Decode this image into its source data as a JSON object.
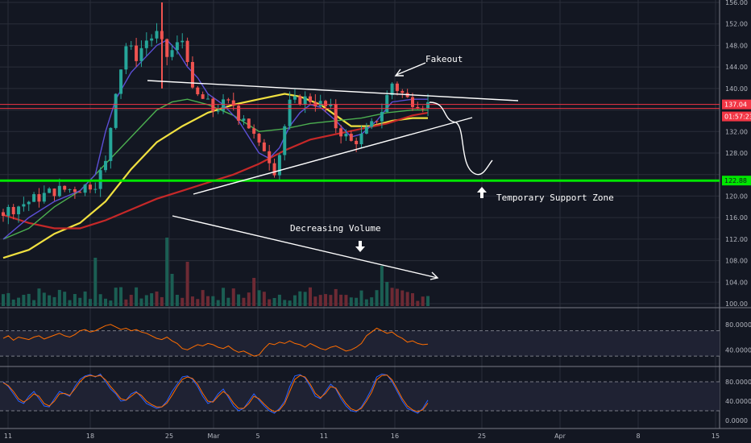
{
  "chart_data": [
    {
      "type": "candlestick",
      "title": "",
      "x_tick_labels": [
        "11",
        "18",
        "25",
        "Mar",
        "5",
        "11",
        "16",
        "25",
        "Apr",
        "8",
        "15"
      ],
      "y_axis": {
        "min": 100,
        "max": 156,
        "ticks": [
          100,
          104,
          108,
          112,
          116,
          120,
          124,
          128,
          132,
          136,
          140,
          144,
          148,
          152,
          156
        ],
        "tick_labels": [
          "100.00",
          "104.00",
          "108.00",
          "112.00",
          "116.00",
          "120.00",
          "124.00",
          "128.00",
          "132.00",
          "136.00",
          "140.00",
          "144.00",
          "148.00",
          "152.00",
          "156.00"
        ]
      },
      "price_labels": [
        {
          "text": "137.04",
          "value": 137.04,
          "color": "#f23645"
        },
        {
          "text": "01:57:23",
          "value": 134.8,
          "color": "#f23645"
        },
        {
          "text": "122.88",
          "value": 122.88,
          "color": "#00e600"
        }
      ],
      "close_path": [
        [
          0,
          117
        ],
        [
          5,
          119
        ],
        [
          10,
          121
        ],
        [
          15,
          121.5
        ],
        [
          18,
          122.5
        ],
        [
          20,
          126
        ],
        [
          22,
          140
        ],
        [
          24,
          148
        ],
        [
          26,
          146
        ],
        [
          28,
          149
        ],
        [
          30,
          150
        ],
        [
          32,
          146
        ],
        [
          34,
          148
        ],
        [
          35,
          149
        ],
        [
          36,
          146
        ],
        [
          37,
          139
        ],
        [
          39,
          138
        ],
        [
          41,
          136
        ],
        [
          43,
          137
        ],
        [
          45,
          137
        ],
        [
          46,
          135
        ],
        [
          47,
          135
        ],
        [
          48,
          133
        ],
        [
          49,
          131
        ],
        [
          50,
          129
        ],
        [
          51,
          129
        ],
        [
          52,
          127
        ],
        [
          53,
          125
        ],
        [
          54,
          128
        ],
        [
          55,
          133
        ],
        [
          56,
          137
        ],
        [
          58,
          138
        ],
        [
          60,
          138
        ],
        [
          62,
          137
        ],
        [
          64,
          136
        ],
        [
          65,
          133
        ],
        [
          66,
          132
        ],
        [
          67,
          131
        ],
        [
          68,
          130
        ],
        [
          70,
          131
        ],
        [
          72,
          133
        ],
        [
          74,
          136
        ],
        [
          76,
          141
        ],
        [
          77,
          140
        ],
        [
          78,
          139
        ],
        [
          79,
          138
        ],
        [
          81,
          137.5
        ],
        [
          83,
          137.04
        ]
      ],
      "moving_averages": [
        {
          "color": "#f0e040",
          "points": [
            [
              0,
              108.5
            ],
            [
              5,
              110
            ],
            [
              10,
              113
            ],
            [
              15,
              115
            ],
            [
              20,
              119
            ],
            [
              25,
              125
            ],
            [
              30,
              130
            ],
            [
              35,
              133
            ],
            [
              40,
              135.5
            ],
            [
              45,
              137
            ],
            [
              50,
              138
            ],
            [
              55,
              139
            ],
            [
              58,
              138.5
            ],
            [
              62,
              137
            ],
            [
              65,
              135
            ],
            [
              68,
              133
            ],
            [
              72,
              133
            ],
            [
              76,
              134
            ],
            [
              80,
              134.5
            ],
            [
              83,
              134.5
            ]
          ]
        },
        {
          "color": "#c62828",
          "points": [
            [
              0,
              116.5
            ],
            [
              5,
              115
            ],
            [
              10,
              114
            ],
            [
              15,
              114
            ],
            [
              20,
              115.5
            ],
            [
              25,
              117.5
            ],
            [
              30,
              119.5
            ],
            [
              35,
              121
            ],
            [
              40,
              122.5
            ],
            [
              45,
              124
            ],
            [
              50,
              126
            ],
            [
              55,
              128.5
            ],
            [
              60,
              130.5
            ],
            [
              65,
              131.5
            ],
            [
              70,
              132.5
            ],
            [
              75,
              133.5
            ],
            [
              80,
              135
            ],
            [
              83,
              135.5
            ]
          ]
        },
        {
          "color": "#4caf50",
          "points": [
            [
              0,
              112
            ],
            [
              5,
              114
            ],
            [
              10,
              118
            ],
            [
              15,
              121
            ],
            [
              20,
              126
            ],
            [
              25,
              131
            ],
            [
              30,
              136
            ],
            [
              33,
              137.5
            ],
            [
              36,
              138
            ],
            [
              40,
              137
            ],
            [
              45,
              135
            ],
            [
              50,
              132
            ],
            [
              55,
              132.5
            ],
            [
              60,
              133.5
            ],
            [
              65,
              134
            ],
            [
              70,
              134.5
            ],
            [
              75,
              135.5
            ],
            [
              80,
              136
            ],
            [
              83,
              136
            ]
          ]
        },
        {
          "color": "#5c4fd6",
          "points": [
            [
              0,
              112
            ],
            [
              5,
              116
            ],
            [
              10,
              119
            ],
            [
              15,
              121
            ],
            [
              18,
              124
            ],
            [
              20,
              132
            ],
            [
              22,
              138
            ],
            [
              25,
              143
            ],
            [
              28,
              146
            ],
            [
              30,
              148
            ],
            [
              32,
              149
            ],
            [
              34,
              147
            ],
            [
              36,
              144
            ],
            [
              38,
              142
            ],
            [
              40,
              139
            ],
            [
              43,
              137
            ],
            [
              46,
              134
            ],
            [
              48,
              131
            ],
            [
              50,
              128
            ],
            [
              52,
              127
            ],
            [
              54,
              129
            ],
            [
              56,
              133
            ],
            [
              58,
              135.5
            ],
            [
              60,
              137
            ],
            [
              62,
              136.5
            ],
            [
              65,
              134
            ],
            [
              68,
              131
            ],
            [
              70,
              131.5
            ],
            [
              73,
              134
            ],
            [
              76,
              137.5
            ],
            [
              80,
              138
            ],
            [
              83,
              138
            ]
          ]
        }
      ],
      "spike_marker": {
        "value": 156
      },
      "horizontal_lines": [
        {
          "value": 122.88,
          "color": "#00e600",
          "width": 3
        },
        {
          "value": 137.04,
          "color": "#f23645",
          "width": 1
        },
        {
          "value": 136.3,
          "color": "#f23645",
          "width": 1
        }
      ],
      "annotations": {
        "fakeout": "Fakeout",
        "decreasing_volume": "Decreasing Volume",
        "temporary_support": "Temporary Support Zone"
      }
    },
    {
      "type": "line",
      "title": "",
      "y_tick_labels": [
        "80.0000",
        "40.0000"
      ],
      "ylim": [
        20,
        100
      ],
      "color": "#ff6d00",
      "values": [
        58,
        62,
        55,
        60,
        58,
        56,
        60,
        62,
        57,
        60,
        63,
        66,
        62,
        60,
        64,
        70,
        72,
        68,
        70,
        74,
        78,
        80,
        76,
        72,
        74,
        70,
        72,
        68,
        66,
        62,
        58,
        56,
        60,
        54,
        50,
        42,
        40,
        44,
        48,
        46,
        50,
        48,
        44,
        42,
        46,
        40,
        36,
        38,
        34,
        30,
        32,
        42,
        50,
        48,
        52,
        50,
        54,
        50,
        48,
        44,
        50,
        46,
        42,
        40,
        44,
        46,
        42,
        38,
        40,
        44,
        50,
        62,
        68,
        74,
        70,
        66,
        68,
        62,
        58,
        52,
        54,
        50,
        48,
        49
      ]
    },
    {
      "type": "line",
      "title": "",
      "y_tick_labels": [
        "80.0000",
        "40.0000",
        "0.0000"
      ],
      "ylim": [
        0,
        100
      ],
      "series": [
        {
          "color": "#2962ff",
          "values": [
            80,
            70,
            55,
            40,
            35,
            50,
            60,
            45,
            30,
            28,
            45,
            60,
            55,
            50,
            70,
            85,
            92,
            95,
            90,
            96,
            80,
            65,
            55,
            40,
            42,
            55,
            60,
            48,
            35,
            30,
            25,
            28,
            40,
            60,
            75,
            90,
            92,
            85,
            70,
            50,
            35,
            40,
            55,
            65,
            48,
            30,
            20,
            25,
            40,
            55,
            42,
            30,
            20,
            15,
            25,
            40,
            70,
            92,
            95,
            88,
            70,
            50,
            45,
            60,
            75,
            65,
            45,
            30,
            20,
            18,
            28,
            45,
            65,
            90,
            96,
            94,
            80,
            60,
            40,
            25,
            20,
            15,
            25,
            42
          ]
        },
        {
          "color": "#ff6d00",
          "values": [
            78,
            72,
            60,
            45,
            38,
            45,
            55,
            50,
            35,
            30,
            40,
            55,
            56,
            52,
            65,
            80,
            90,
            93,
            91,
            93,
            84,
            70,
            58,
            45,
            42,
            50,
            58,
            52,
            40,
            33,
            28,
            28,
            36,
            52,
            70,
            85,
            90,
            87,
            75,
            56,
            40,
            38,
            50,
            60,
            52,
            36,
            25,
            25,
            35,
            50,
            45,
            34,
            24,
            18,
            22,
            35,
            60,
            85,
            93,
            90,
            75,
            56,
            47,
            56,
            70,
            67,
            50,
            35,
            24,
            20,
            25,
            40,
            58,
            84,
            93,
            94,
            84,
            65,
            45,
            30,
            22,
            18,
            22,
            36
          ]
        }
      ]
    }
  ]
}
